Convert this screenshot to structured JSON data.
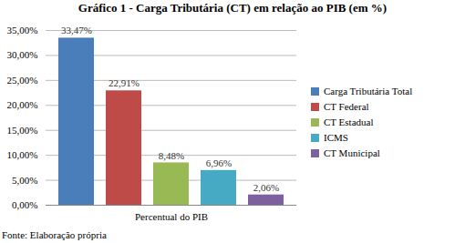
{
  "chart_data": {
    "type": "bar",
    "title": "Gráfico 1 - Carga Tributária (CT) em relação ao PIB (em %)",
    "caption": "Fonte: Elaboração própria",
    "categories": [
      "Percentual do PIB"
    ],
    "series": [
      {
        "name": "Carga Tributária Total",
        "color": "#4a7ebb",
        "values": [
          33.47
        ],
        "value_labels": [
          "33,47%"
        ]
      },
      {
        "name": "CT Federal",
        "color": "#be4b48",
        "values": [
          22.91
        ],
        "value_labels": [
          "22,91%"
        ]
      },
      {
        "name": "CT Estadual",
        "color": "#98b954",
        "values": [
          8.48
        ],
        "value_labels": [
          "8,48%"
        ]
      },
      {
        "name": "ICMS",
        "color": "#46aac5",
        "values": [
          6.96
        ],
        "value_labels": [
          "6,96%"
        ]
      },
      {
        "name": "CT Municipal",
        "color": "#7d60a0",
        "values": [
          2.06
        ],
        "value_labels": [
          "2,06%"
        ]
      }
    ],
    "ylim": [
      0,
      35
    ],
    "yticks": [
      {
        "value": 0,
        "label": "0,00%"
      },
      {
        "value": 5,
        "label": "5,00%"
      },
      {
        "value": 10,
        "label": "10,00%"
      },
      {
        "value": 15,
        "label": "15,00%"
      },
      {
        "value": 20,
        "label": "20,00%"
      },
      {
        "value": 25,
        "label": "25,00%"
      },
      {
        "value": 30,
        "label": "30,00%"
      },
      {
        "value": 35,
        "label": "35,00%"
      }
    ],
    "grid": true,
    "legend": "right",
    "data_labels": true
  }
}
